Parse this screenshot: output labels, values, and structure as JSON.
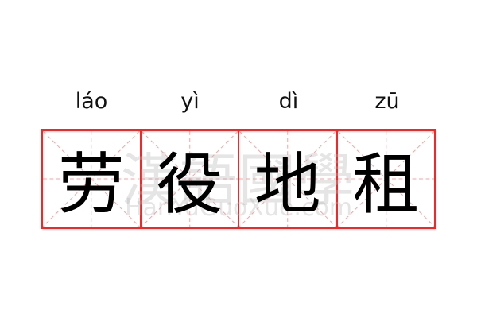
{
  "characters": [
    {
      "pinyin": "láo",
      "hanzi": "劳"
    },
    {
      "pinyin": "yì",
      "hanzi": "役"
    },
    {
      "pinyin": "dì",
      "hanzi": "地"
    },
    {
      "pinyin": "zū",
      "hanzi": "租"
    }
  ],
  "watermark": {
    "chinese": "漢語國學",
    "latin": "HanYuGuoXue.com"
  },
  "colors": {
    "grid_border": "#ff2222",
    "guide_lines": "#f7a0a0"
  }
}
